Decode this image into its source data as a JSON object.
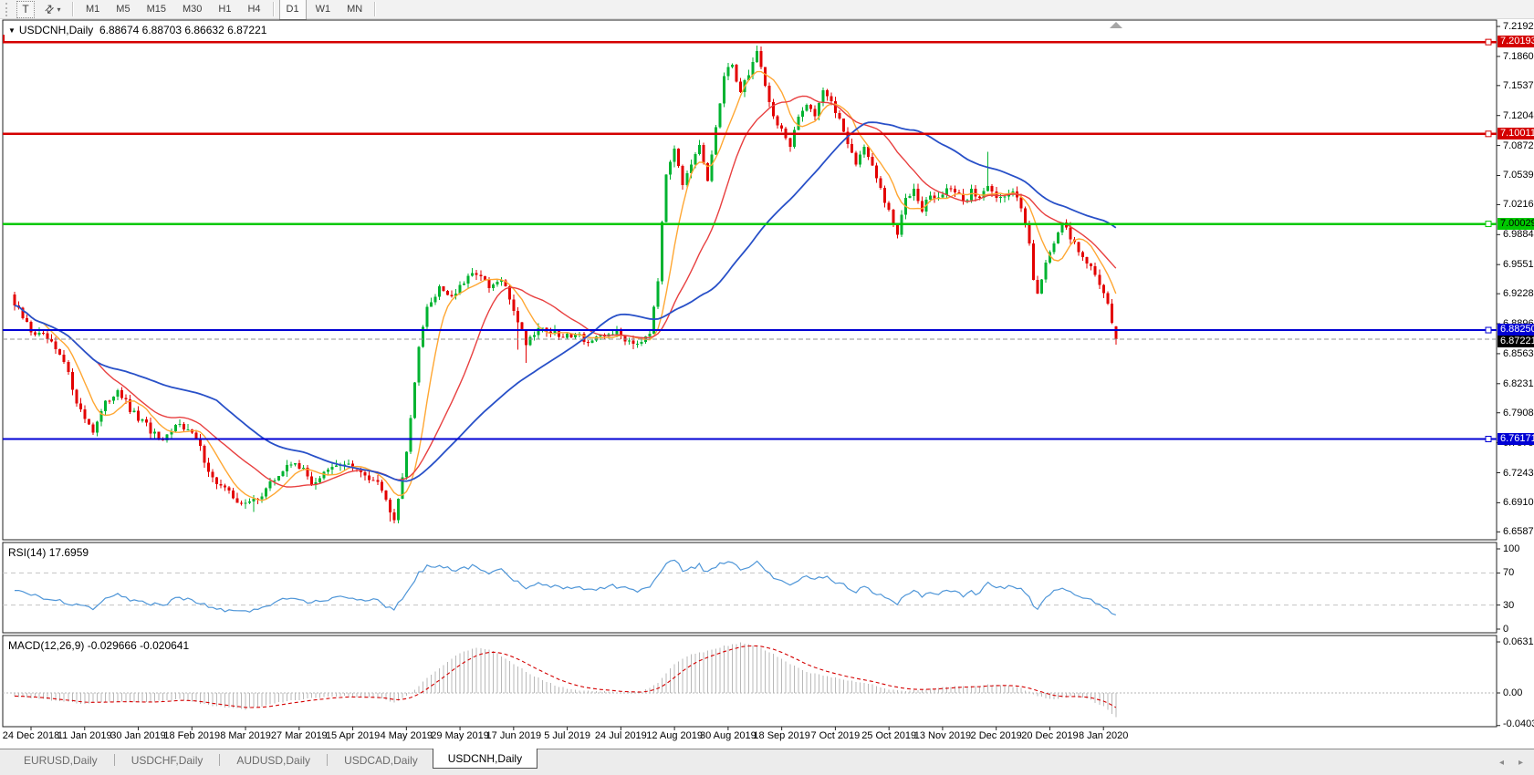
{
  "toolbar": {
    "text_tool_label": "T",
    "arrange_icon": "⇄",
    "dropdown_caret": "▾",
    "timeframes": [
      "M1",
      "M5",
      "M15",
      "M30",
      "H1",
      "H4",
      "D1",
      "W1",
      "MN"
    ],
    "active_timeframe": "D1"
  },
  "chart": {
    "dropdown_marker": "▼",
    "symbol": "USDCNH,Daily",
    "ohlc": "6.88674 6.88703 6.86632 6.87221"
  },
  "price_axis": {
    "ticks": [
      "7.21925",
      "7.18600",
      "7.15370",
      "7.12045",
      "7.08720",
      "7.05395",
      "7.02165",
      "6.98840",
      "6.95515",
      "6.92285",
      "6.88960",
      "6.85635",
      "6.82310",
      "6.79080",
      "6.75755",
      "6.72430",
      "6.69105",
      "6.65875"
    ],
    "levels": [
      {
        "value": "7.20193",
        "color": "#d40000",
        "text": "#ffffff"
      },
      {
        "value": "7.10011",
        "color": "#d40000",
        "text": "#ffffff"
      },
      {
        "value": "7.00029",
        "color": "#00c800",
        "text": "#000000"
      },
      {
        "value": "6.88250",
        "color": "#0000d4",
        "text": "#ffffff"
      },
      {
        "value": "6.76171",
        "color": "#0000d4",
        "text": "#ffffff"
      }
    ],
    "current_price": {
      "value": "6.87221",
      "color": "#000000",
      "text": "#ffffff"
    }
  },
  "rsi_panel": {
    "label": "RSI(14)",
    "value": "17.6959",
    "ticks": [
      "100",
      "70",
      "30",
      "0"
    ]
  },
  "macd_panel": {
    "label": "MACD(12,26,9)",
    "values": "-0.029666 -0.020641",
    "ticks": [
      "0.063184",
      "0.00",
      "-0.040355"
    ]
  },
  "date_axis": [
    "24 Dec 2018",
    "11 Jan 2019",
    "30 Jan 2019",
    "18 Feb 2019",
    "8 Mar 2019",
    "27 Mar 2019",
    "15 Apr 2019",
    "4 May 2019",
    "29 May 2019",
    "17 Jun 2019",
    "5 Jul 2019",
    "24 Jul 2019",
    "12 Aug 2019",
    "30 Aug 2019",
    "18 Sep 2019",
    "7 Oct 2019",
    "25 Oct 2019",
    "13 Nov 2019",
    "2 Dec 2019",
    "20 Dec 2019",
    "8 Jan 2020"
  ],
  "tab_bar": {
    "tabs": [
      "EURUSD,Daily",
      "USDCHF,Daily",
      "AUDUSD,Daily",
      "USDCAD,Daily",
      "USDCNH,Daily"
    ],
    "active": "USDCNH,Daily",
    "scroll_left": "◂",
    "scroll_right": "▸"
  },
  "chart_data": {
    "type": "candlestick",
    "symbol": "USDCNH",
    "timeframe": "Daily",
    "bars": 268,
    "last_bar": {
      "o": 6.88674,
      "h": 6.88703,
      "l": 6.86632,
      "c": 6.87221
    },
    "price_range": [
      6.65875,
      7.21925
    ],
    "hlines": [
      {
        "value": 7.20193,
        "color": "#d40000"
      },
      {
        "value": 7.10011,
        "color": "#d40000"
      },
      {
        "value": 7.00029,
        "color": "#00c800"
      },
      {
        "value": 6.8825,
        "color": "#0000d4"
      },
      {
        "value": 6.76171,
        "color": "#0000d4"
      }
    ],
    "current_price": 6.87221,
    "ma_lines": [
      {
        "name": "fast",
        "color": "#ffa733",
        "window": 8,
        "width": 1.4
      },
      {
        "name": "medium",
        "color": "#e84040",
        "window": 21,
        "width": 1.4
      },
      {
        "name": "slow",
        "color": "#2850c8",
        "window": 50,
        "width": 1.8
      }
    ],
    "close_anchors": [
      [
        0,
        6.91
      ],
      [
        4,
        6.882
      ],
      [
        8,
        6.872
      ],
      [
        12,
        6.846
      ],
      [
        16,
        6.792
      ],
      [
        19,
        6.772
      ],
      [
        22,
        6.8
      ],
      [
        25,
        6.818
      ],
      [
        28,
        6.793
      ],
      [
        32,
        6.776
      ],
      [
        36,
        6.756
      ],
      [
        40,
        6.782
      ],
      [
        44,
        6.761
      ],
      [
        48,
        6.718
      ],
      [
        52,
        6.701
      ],
      [
        56,
        6.688
      ],
      [
        60,
        6.701
      ],
      [
        64,
        6.722
      ],
      [
        68,
        6.738
      ],
      [
        72,
        6.713
      ],
      [
        76,
        6.726
      ],
      [
        80,
        6.736
      ],
      [
        84,
        6.723
      ],
      [
        88,
        6.718
      ],
      [
        90,
        6.693
      ],
      [
        92,
        6.676
      ],
      [
        94,
        6.721
      ],
      [
        96,
        6.781
      ],
      [
        98,
        6.868
      ],
      [
        100,
        6.905
      ],
      [
        103,
        6.931
      ],
      [
        106,
        6.92
      ],
      [
        109,
        6.934
      ],
      [
        112,
        6.948
      ],
      [
        115,
        6.928
      ],
      [
        118,
        6.938
      ],
      [
        121,
        6.906
      ],
      [
        124,
        6.869
      ],
      [
        127,
        6.886
      ],
      [
        130,
        6.881
      ],
      [
        133,
        6.873
      ],
      [
        136,
        6.881
      ],
      [
        139,
        6.869
      ],
      [
        142,
        6.873
      ],
      [
        145,
        6.881
      ],
      [
        148,
        6.873
      ],
      [
        151,
        6.869
      ],
      [
        154,
        6.882
      ],
      [
        156,
        6.94
      ],
      [
        158,
        7.056
      ],
      [
        160,
        7.088
      ],
      [
        162,
        7.046
      ],
      [
        164,
        7.062
      ],
      [
        166,
        7.086
      ],
      [
        168,
        7.046
      ],
      [
        170,
        7.108
      ],
      [
        172,
        7.162
      ],
      [
        174,
        7.178
      ],
      [
        176,
        7.146
      ],
      [
        178,
        7.168
      ],
      [
        180,
        7.192
      ],
      [
        182,
        7.156
      ],
      [
        184,
        7.118
      ],
      [
        186,
        7.106
      ],
      [
        188,
        7.083
      ],
      [
        190,
        7.118
      ],
      [
        192,
        7.136
      ],
      [
        194,
        7.122
      ],
      [
        196,
        7.15
      ],
      [
        198,
        7.132
      ],
      [
        200,
        7.118
      ],
      [
        202,
        7.092
      ],
      [
        204,
        7.066
      ],
      [
        206,
        7.088
      ],
      [
        208,
        7.062
      ],
      [
        210,
        7.038
      ],
      [
        212,
        7.012
      ],
      [
        214,
        6.988
      ],
      [
        216,
        7.028
      ],
      [
        218,
        7.042
      ],
      [
        220,
        7.018
      ],
      [
        222,
        7.032
      ],
      [
        224,
        7.026
      ],
      [
        226,
        7.042
      ],
      [
        228,
        7.036
      ],
      [
        230,
        7.022
      ],
      [
        232,
        7.038
      ],
      [
        234,
        7.028
      ],
      [
        236,
        7.046
      ],
      [
        238,
        7.032
      ],
      [
        240,
        7.028
      ],
      [
        242,
        7.036
      ],
      [
        244,
        7.022
      ],
      [
        246,
        6.982
      ],
      [
        247,
        6.936
      ],
      [
        248,
        6.922
      ],
      [
        250,
        6.96
      ],
      [
        252,
        6.982
      ],
      [
        254,
        6.998
      ],
      [
        256,
        6.986
      ],
      [
        258,
        6.972
      ],
      [
        260,
        6.958
      ],
      [
        262,
        6.942
      ],
      [
        264,
        6.925
      ],
      [
        265,
        6.916
      ],
      [
        266,
        6.888
      ],
      [
        267,
        6.87221
      ]
    ],
    "wick_events": [
      [
        58,
        -0.012
      ],
      [
        91,
        -0.01
      ],
      [
        122,
        -0.03
      ],
      [
        124,
        -0.02
      ],
      [
        180,
        0.006
      ],
      [
        236,
        0.038
      ]
    ],
    "rsi": {
      "period": 14,
      "last": 17.6959,
      "range": [
        0,
        100
      ],
      "levels": [
        70,
        30
      ],
      "anchors": [
        [
          0,
          50
        ],
        [
          4,
          42
        ],
        [
          8,
          38
        ],
        [
          12,
          34
        ],
        [
          16,
          28
        ],
        [
          19,
          26
        ],
        [
          22,
          36
        ],
        [
          25,
          42
        ],
        [
          28,
          36
        ],
        [
          32,
          33
        ],
        [
          36,
          30
        ],
        [
          40,
          40
        ],
        [
          44,
          34
        ],
        [
          48,
          26
        ],
        [
          52,
          23
        ],
        [
          56,
          21
        ],
        [
          60,
          28
        ],
        [
          64,
          35
        ],
        [
          68,
          40
        ],
        [
          72,
          33
        ],
        [
          76,
          38
        ],
        [
          80,
          42
        ],
        [
          84,
          37
        ],
        [
          88,
          35
        ],
        [
          90,
          29
        ],
        [
          92,
          26
        ],
        [
          94,
          38
        ],
        [
          96,
          52
        ],
        [
          98,
          70
        ],
        [
          100,
          78
        ],
        [
          103,
          80
        ],
        [
          106,
          74
        ],
        [
          109,
          76
        ],
        [
          112,
          79
        ],
        [
          115,
          70
        ],
        [
          118,
          73
        ],
        [
          121,
          62
        ],
        [
          124,
          50
        ],
        [
          127,
          56
        ],
        [
          130,
          54
        ],
        [
          133,
          50
        ],
        [
          136,
          53
        ],
        [
          139,
          49
        ],
        [
          142,
          51
        ],
        [
          145,
          54
        ],
        [
          148,
          51
        ],
        [
          151,
          48
        ],
        [
          154,
          53
        ],
        [
          156,
          66
        ],
        [
          158,
          82
        ],
        [
          160,
          85
        ],
        [
          162,
          74
        ],
        [
          164,
          76
        ],
        [
          166,
          80
        ],
        [
          168,
          70
        ],
        [
          170,
          78
        ],
        [
          172,
          83
        ],
        [
          174,
          85
        ],
        [
          176,
          76
        ],
        [
          178,
          79
        ],
        [
          180,
          83
        ],
        [
          182,
          72
        ],
        [
          184,
          64
        ],
        [
          186,
          61
        ],
        [
          188,
          55
        ],
        [
          190,
          62
        ],
        [
          192,
          65
        ],
        [
          194,
          61
        ],
        [
          196,
          66
        ],
        [
          198,
          61
        ],
        [
          200,
          58
        ],
        [
          202,
          52
        ],
        [
          204,
          46
        ],
        [
          206,
          52
        ],
        [
          208,
          46
        ],
        [
          210,
          41
        ],
        [
          212,
          36
        ],
        [
          214,
          31
        ],
        [
          216,
          44
        ],
        [
          218,
          48
        ],
        [
          220,
          42
        ],
        [
          222,
          46
        ],
        [
          224,
          44
        ],
        [
          226,
          49
        ],
        [
          228,
          46
        ],
        [
          230,
          42
        ],
        [
          232,
          46
        ],
        [
          234,
          44
        ],
        [
          236,
          58
        ],
        [
          238,
          54
        ],
        [
          240,
          52
        ],
        [
          242,
          54
        ],
        [
          244,
          50
        ],
        [
          246,
          38
        ],
        [
          247,
          30
        ],
        [
          248,
          27
        ],
        [
          250,
          40
        ],
        [
          252,
          47
        ],
        [
          254,
          52
        ],
        [
          256,
          47
        ],
        [
          258,
          43
        ],
        [
          260,
          38
        ],
        [
          262,
          32
        ],
        [
          264,
          27
        ],
        [
          265,
          24
        ],
        [
          266,
          21
        ],
        [
          267,
          17.7
        ]
      ]
    },
    "macd": {
      "params": "12,26,9",
      "last_macd": -0.029666,
      "last_signal": -0.020641,
      "range": [
        -0.040355,
        0.063184
      ],
      "anchors": [
        [
          0,
          -0.004
        ],
        [
          8,
          -0.008
        ],
        [
          16,
          -0.013
        ],
        [
          24,
          -0.01
        ],
        [
          32,
          -0.012
        ],
        [
          40,
          -0.008
        ],
        [
          48,
          -0.016
        ],
        [
          56,
          -0.02
        ],
        [
          64,
          -0.012
        ],
        [
          72,
          -0.006
        ],
        [
          80,
          -0.004
        ],
        [
          88,
          -0.006
        ],
        [
          92,
          -0.012
        ],
        [
          96,
          0.0
        ],
        [
          100,
          0.018
        ],
        [
          104,
          0.035
        ],
        [
          108,
          0.05
        ],
        [
          112,
          0.056
        ],
        [
          116,
          0.052
        ],
        [
          120,
          0.04
        ],
        [
          124,
          0.026
        ],
        [
          128,
          0.016
        ],
        [
          132,
          0.008
        ],
        [
          136,
          0.004
        ],
        [
          140,
          0.002
        ],
        [
          144,
          0.002
        ],
        [
          148,
          0.0
        ],
        [
          152,
          0.001
        ],
        [
          156,
          0.012
        ],
        [
          160,
          0.036
        ],
        [
          164,
          0.048
        ],
        [
          168,
          0.052
        ],
        [
          172,
          0.058
        ],
        [
          176,
          0.062
        ],
        [
          180,
          0.058
        ],
        [
          184,
          0.048
        ],
        [
          188,
          0.036
        ],
        [
          192,
          0.026
        ],
        [
          196,
          0.022
        ],
        [
          200,
          0.018
        ],
        [
          204,
          0.014
        ],
        [
          208,
          0.01
        ],
        [
          212,
          0.004
        ],
        [
          216,
          0.002
        ],
        [
          220,
          0.004
        ],
        [
          224,
          0.006
        ],
        [
          228,
          0.008
        ],
        [
          232,
          0.008
        ],
        [
          236,
          0.01
        ],
        [
          240,
          0.01
        ],
        [
          244,
          0.006
        ],
        [
          248,
          -0.004
        ],
        [
          252,
          -0.008
        ],
        [
          256,
          -0.004
        ],
        [
          260,
          -0.007
        ],
        [
          264,
          -0.016
        ],
        [
          267,
          -0.029666
        ]
      ]
    },
    "colors": {
      "up": "#00b331",
      "down": "#e30000",
      "rsi_line": "#4f96d8",
      "macd_hist": "#b8b8b8",
      "macd_signal": "#d40000"
    }
  }
}
